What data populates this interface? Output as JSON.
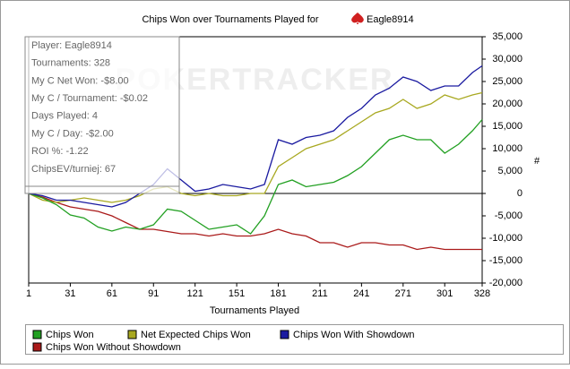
{
  "chart_data": {
    "type": "line",
    "title": "Chips Won over Tournaments Played for",
    "player": "Eagle8914",
    "xlabel": "Tournaments Played",
    "ylabel": "#",
    "watermark": "POKERTRACKER",
    "info_box": [
      "Player: Eagle8914",
      "Tournaments: 328",
      "My C Net Won: -$8.00",
      "My C / Tournament: -$0.02",
      "Days Played: 4",
      "My C / Day: -$2.00",
      "ROI %: -1.22",
      "ChipsEV/turniej: 67"
    ],
    "x": [
      1,
      11,
      21,
      31,
      41,
      51,
      61,
      71,
      81,
      91,
      101,
      111,
      121,
      131,
      141,
      151,
      161,
      171,
      181,
      191,
      201,
      211,
      221,
      231,
      241,
      251,
      261,
      271,
      281,
      291,
      301,
      311,
      321,
      328
    ],
    "series": [
      {
        "name": "Chips Won",
        "color": "#22a022",
        "values": [
          0,
          -1000,
          -2500,
          -4800,
          -5500,
          -7500,
          -8400,
          -7500,
          -8000,
          -7000,
          -3500,
          -4000,
          -6000,
          -8000,
          -7500,
          -7000,
          -9000,
          -5000,
          2000,
          3000,
          1500,
          2000,
          2500,
          4000,
          6000,
          9000,
          12000,
          13000,
          12000,
          12000,
          9000,
          11000,
          14000,
          16500
        ]
      },
      {
        "name": "Net Expected Chips Won",
        "color": "#a8a820",
        "values": [
          0,
          -1500,
          -2000,
          -1500,
          -1000,
          -1500,
          -2000,
          -1500,
          -500,
          1000,
          1500,
          0,
          -500,
          0,
          -500,
          -500,
          0,
          0,
          6000,
          8000,
          10000,
          11000,
          12000,
          14000,
          16000,
          18000,
          19000,
          21000,
          19000,
          20000,
          22000,
          21000,
          22000,
          22500
        ]
      },
      {
        "name": "Chips Won With Showdown",
        "color": "#1a1aa0",
        "values": [
          0,
          -500,
          -1500,
          -1500,
          -2000,
          -2500,
          -3000,
          -2000,
          0,
          2000,
          5500,
          3000,
          500,
          1000,
          2000,
          1500,
          1000,
          2000,
          12000,
          11000,
          12500,
          13000,
          14000,
          17000,
          19000,
          22000,
          23500,
          26000,
          25000,
          23000,
          24000,
          24000,
          27000,
          28500
        ]
      },
      {
        "name": "Chips Won Without Showdown",
        "color": "#aa1a1a",
        "values": [
          0,
          -800,
          -2000,
          -3000,
          -3500,
          -4000,
          -5000,
          -6500,
          -8000,
          -8000,
          -8500,
          -9000,
          -9000,
          -9500,
          -9000,
          -9500,
          -9500,
          -9000,
          -8000,
          -9000,
          -9500,
          -11000,
          -11000,
          -12000,
          -11000,
          -11000,
          -11500,
          -11500,
          -12500,
          -12000,
          -12500,
          -12500,
          -12500,
          -12500
        ]
      }
    ],
    "xlim": [
      1,
      328
    ],
    "xticks": [
      1,
      31,
      61,
      91,
      121,
      151,
      181,
      211,
      241,
      271,
      301,
      328
    ],
    "ylim": [
      -20000,
      35000
    ],
    "yticks": [
      {
        "value": -20000,
        "label": "-20,000"
      },
      {
        "value": -15000,
        "label": "-15,000"
      },
      {
        "value": -10000,
        "label": "-10,000"
      },
      {
        "value": -5000,
        "label": "-5,000"
      },
      0,
      {
        "value": 5000,
        "label": "5,000"
      },
      {
        "value": 10000,
        "label": "10,000"
      },
      {
        "value": 15000,
        "label": "15,000"
      },
      {
        "value": 20000,
        "label": "20,000"
      },
      {
        "value": 25000,
        "label": "25,000"
      },
      {
        "value": 30000,
        "label": "30,000"
      },
      {
        "value": 35000,
        "label": "35,000"
      }
    ]
  }
}
